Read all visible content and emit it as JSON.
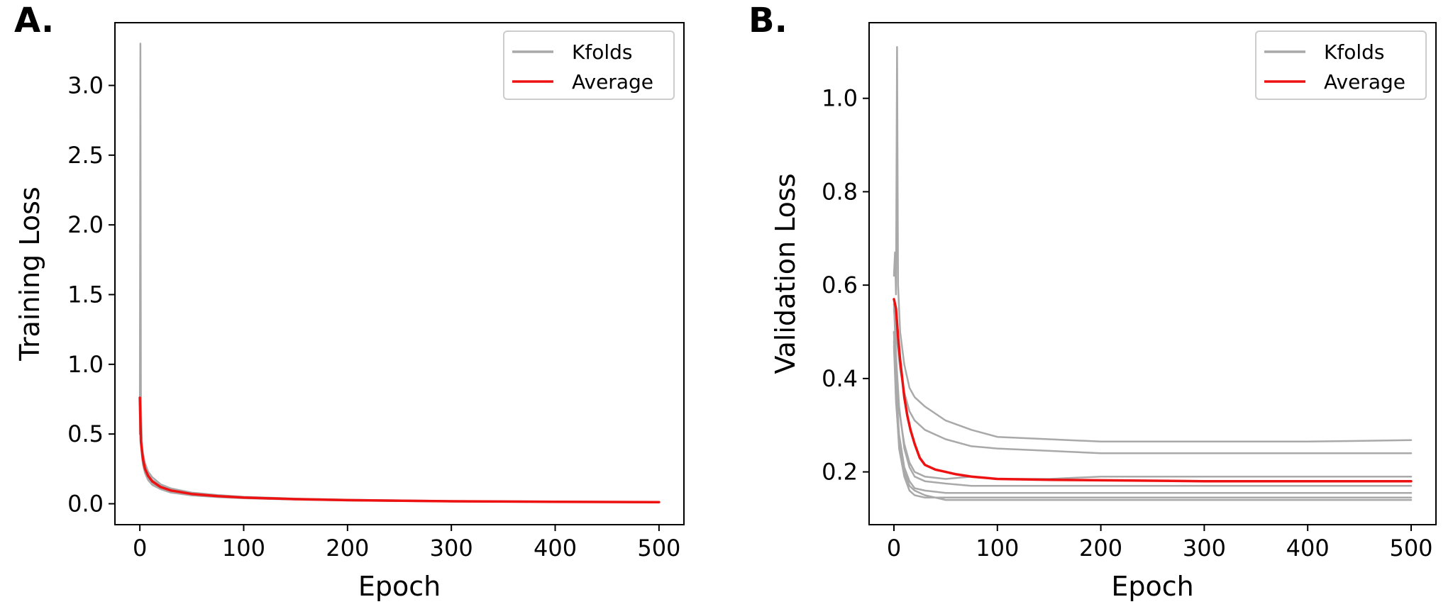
{
  "colors": {
    "kfolds": "#a9a9a9",
    "average": "#ee1111",
    "axes": "#000000"
  },
  "chart_data": [
    {
      "panel_label": "A.",
      "type": "line",
      "xlabel": "Epoch",
      "ylabel": "Training Loss",
      "xlim": [
        -24,
        524
      ],
      "ylim": [
        -0.15,
        3.45
      ],
      "xticks": [
        0,
        100,
        200,
        300,
        400,
        500
      ],
      "xtick_labels": [
        "0",
        "100",
        "200",
        "300",
        "400",
        "500"
      ],
      "yticks": [
        0.0,
        0.5,
        1.0,
        1.5,
        2.0,
        2.5,
        3.0
      ],
      "ytick_labels": [
        "0.0",
        "0.5",
        "1.0",
        "1.5",
        "2.0",
        "2.5",
        "3.0"
      ],
      "grid": false,
      "legend": {
        "position": "top-right",
        "entries": [
          "Kfolds",
          "Average"
        ]
      },
      "series": [
        {
          "name": "Kfolds",
          "role": "kfolds",
          "x": [
            0,
            0.5,
            1,
            2,
            3,
            5,
            8,
            12,
            20,
            30,
            50,
            75,
            100,
            150,
            200,
            300,
            400,
            500
          ],
          "y": [
            0.5,
            3.3,
            0.72,
            0.42,
            0.35,
            0.27,
            0.21,
            0.17,
            0.13,
            0.1,
            0.075,
            0.058,
            0.046,
            0.034,
            0.027,
            0.019,
            0.015,
            0.012
          ]
        },
        {
          "role": "kfolds",
          "x": [
            0,
            1,
            2,
            3,
            5,
            8,
            12,
            20,
            30,
            50,
            75,
            100,
            150,
            200,
            300,
            400,
            500
          ],
          "y": [
            0.72,
            0.5,
            0.4,
            0.33,
            0.26,
            0.2,
            0.16,
            0.12,
            0.095,
            0.07,
            0.055,
            0.044,
            0.033,
            0.026,
            0.018,
            0.014,
            0.011
          ]
        },
        {
          "role": "kfolds",
          "x": [
            0,
            1,
            2,
            3,
            5,
            8,
            12,
            20,
            30,
            50,
            75,
            100,
            150,
            200,
            300,
            400,
            500
          ],
          "y": [
            0.68,
            0.45,
            0.36,
            0.3,
            0.23,
            0.18,
            0.14,
            0.11,
            0.085,
            0.063,
            0.05,
            0.041,
            0.031,
            0.024,
            0.017,
            0.013,
            0.01
          ]
        },
        {
          "role": "kfolds",
          "x": [
            0,
            1,
            2,
            3,
            5,
            8,
            12,
            20,
            30,
            50,
            75,
            100,
            150,
            200,
            300,
            400,
            500
          ],
          "y": [
            0.7,
            0.48,
            0.42,
            0.36,
            0.29,
            0.23,
            0.19,
            0.14,
            0.11,
            0.08,
            0.062,
            0.05,
            0.037,
            0.029,
            0.02,
            0.016,
            0.013
          ]
        },
        {
          "role": "kfolds",
          "x": [
            0,
            1,
            2,
            3,
            5,
            8,
            12,
            20,
            30,
            50,
            75,
            100,
            150,
            200,
            300,
            400,
            500
          ],
          "y": [
            0.66,
            0.43,
            0.34,
            0.28,
            0.22,
            0.17,
            0.135,
            0.105,
            0.08,
            0.06,
            0.048,
            0.039,
            0.03,
            0.023,
            0.016,
            0.012,
            0.01
          ]
        },
        {
          "name": "Average",
          "role": "average",
          "x": [
            0,
            1,
            2,
            3,
            5,
            8,
            12,
            20,
            30,
            50,
            75,
            100,
            150,
            200,
            300,
            400,
            500
          ],
          "y": [
            0.76,
            0.45,
            0.38,
            0.32,
            0.25,
            0.2,
            0.16,
            0.12,
            0.095,
            0.07,
            0.055,
            0.044,
            0.033,
            0.026,
            0.018,
            0.014,
            0.011
          ]
        }
      ]
    },
    {
      "panel_label": "B.",
      "type": "line",
      "xlabel": "Epoch",
      "ylabel": "Validation Loss",
      "xlim": [
        -24,
        524
      ],
      "ylim": [
        0.087,
        1.162
      ],
      "xticks": [
        0,
        100,
        200,
        300,
        400,
        500
      ],
      "xtick_labels": [
        "0",
        "100",
        "200",
        "300",
        "400",
        "500"
      ],
      "yticks": [
        0.2,
        0.4,
        0.6,
        0.8,
        1.0
      ],
      "ytick_labels": [
        "0.2",
        "0.4",
        "0.6",
        "0.8",
        "1.0"
      ],
      "grid": false,
      "legend": {
        "position": "top-right",
        "entries": [
          "Kfolds",
          "Average"
        ]
      },
      "series": [
        {
          "name": "Kfolds",
          "role": "kfolds",
          "x": [
            0,
            1,
            2,
            3,
            4,
            6,
            10,
            15,
            20,
            30,
            50,
            75,
            100,
            150,
            200,
            300,
            400,
            500
          ],
          "y": [
            0.62,
            0.67,
            0.58,
            1.11,
            0.6,
            0.5,
            0.43,
            0.38,
            0.36,
            0.34,
            0.31,
            0.29,
            0.275,
            0.27,
            0.265,
            0.265,
            0.265,
            0.268
          ]
        },
        {
          "role": "kfolds",
          "x": [
            0,
            2,
            4,
            6,
            10,
            15,
            20,
            30,
            50,
            75,
            100,
            150,
            200,
            300,
            400,
            500
          ],
          "y": [
            0.55,
            0.5,
            0.46,
            0.42,
            0.37,
            0.33,
            0.31,
            0.29,
            0.27,
            0.255,
            0.25,
            0.245,
            0.24,
            0.24,
            0.24,
            0.24
          ]
        },
        {
          "role": "kfolds",
          "x": [
            0,
            2,
            5,
            10,
            15,
            20,
            30,
            50,
            75,
            100,
            150,
            200,
            300,
            400,
            500
          ],
          "y": [
            0.5,
            0.42,
            0.33,
            0.26,
            0.22,
            0.2,
            0.19,
            0.185,
            0.19,
            0.185,
            0.185,
            0.19,
            0.19,
            0.19,
            0.19
          ]
        },
        {
          "role": "kfolds",
          "x": [
            0,
            2,
            5,
            10,
            15,
            20,
            30,
            50,
            75,
            100,
            150,
            200,
            300,
            400,
            500
          ],
          "y": [
            0.56,
            0.45,
            0.34,
            0.25,
            0.21,
            0.19,
            0.18,
            0.175,
            0.17,
            0.17,
            0.17,
            0.17,
            0.17,
            0.17,
            0.17
          ]
        },
        {
          "role": "kfolds",
          "x": [
            0,
            2,
            5,
            10,
            15,
            20,
            30,
            50,
            75,
            100,
            150,
            200,
            300,
            400,
            500
          ],
          "y": [
            0.48,
            0.38,
            0.28,
            0.21,
            0.18,
            0.165,
            0.16,
            0.155,
            0.155,
            0.155,
            0.155,
            0.155,
            0.155,
            0.155,
            0.155
          ]
        },
        {
          "role": "kfolds",
          "x": [
            0,
            2,
            5,
            10,
            15,
            20,
            30,
            50,
            75,
            100,
            150,
            200,
            300,
            400,
            500
          ],
          "y": [
            0.5,
            0.36,
            0.25,
            0.19,
            0.16,
            0.15,
            0.145,
            0.145,
            0.145,
            0.145,
            0.145,
            0.145,
            0.145,
            0.145,
            0.145
          ]
        },
        {
          "role": "kfolds",
          "x": [
            0,
            2,
            5,
            10,
            15,
            20,
            30,
            50,
            75,
            100,
            150,
            200,
            300,
            400,
            500
          ],
          "y": [
            0.47,
            0.35,
            0.26,
            0.2,
            0.17,
            0.16,
            0.15,
            0.14,
            0.14,
            0.14,
            0.14,
            0.14,
            0.14,
            0.14,
            0.14
          ]
        },
        {
          "name": "Average",
          "role": "average",
          "x": [
            0,
            2,
            4,
            6,
            8,
            10,
            13,
            16,
            20,
            25,
            30,
            40,
            50,
            60,
            75,
            100,
            150,
            200,
            300,
            400,
            500
          ],
          "y": [
            0.57,
            0.55,
            0.49,
            0.44,
            0.4,
            0.36,
            0.32,
            0.29,
            0.26,
            0.23,
            0.215,
            0.205,
            0.2,
            0.195,
            0.19,
            0.185,
            0.183,
            0.182,
            0.18,
            0.18,
            0.18
          ]
        }
      ]
    }
  ]
}
